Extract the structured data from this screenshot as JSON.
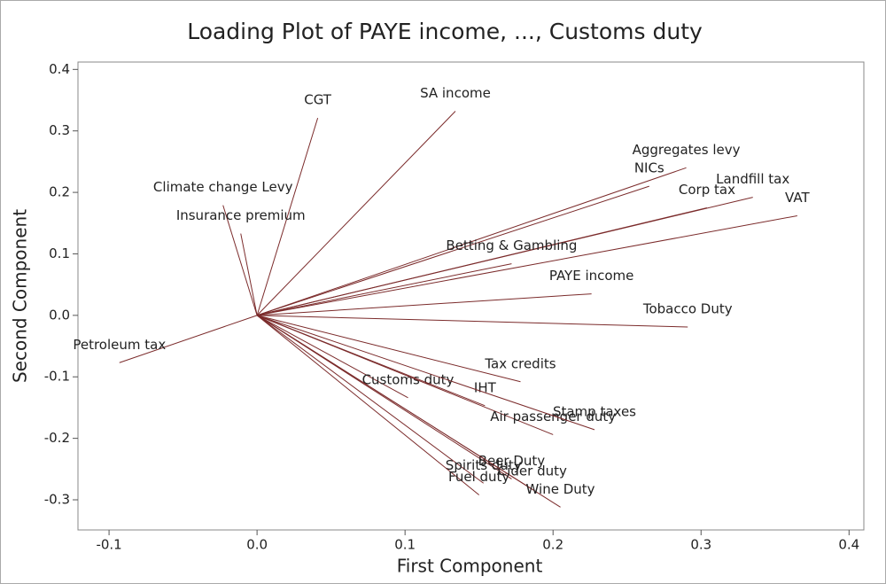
{
  "chart_data": {
    "type": "loading",
    "title": "Loading Plot of PAYE income, ..., Customs duty",
    "x_label": "First Component",
    "y_label": "Second Component",
    "xlim": [
      -0.121,
      0.41
    ],
    "ylim": [
      -0.349,
      0.412
    ],
    "xticks": [
      -0.1,
      {
        "value": 0,
        "label": "0.0"
      },
      0.1,
      0.2,
      0.3,
      0.4
    ],
    "yticks": [
      -0.3,
      -0.2,
      -0.1,
      {
        "value": 0,
        "label": "0.0"
      },
      0.1,
      0.2,
      0.3,
      0.4
    ],
    "color": "#7b2b2b",
    "categories": [
      "CGT",
      "SA income",
      "Aggregates levy",
      "NICs",
      "Landfill tax",
      "Corp tax",
      "VAT",
      "Climate change Levy",
      "Insurance premium",
      "Betting & Gambling",
      "PAYE income",
      "Tobacco Duty",
      "Petroleum tax",
      "Tax credits",
      "Customs duty",
      "IHT",
      "Air passenger duty",
      "Stamp taxes",
      "Beer Duty",
      "Spirits duty",
      "Cider duty",
      "Wine Duty",
      "Fuel duty"
    ],
    "x": [
      0.041,
      0.134,
      0.29,
      0.265,
      0.335,
      0.304,
      0.365,
      -0.023,
      -0.011,
      0.172,
      0.226,
      0.291,
      -0.093,
      0.178,
      0.102,
      0.154,
      0.2,
      0.228,
      0.172,
      0.153,
      0.186,
      0.205,
      0.15
    ],
    "values": [
      0.321,
      0.332,
      0.24,
      0.21,
      0.192,
      0.175,
      0.162,
      0.179,
      0.133,
      0.084,
      0.035,
      -0.019,
      -0.077,
      -0.108,
      -0.134,
      -0.147,
      -0.194,
      -0.186,
      -0.266,
      -0.273,
      -0.283,
      -0.312,
      -0.292
    ]
  }
}
